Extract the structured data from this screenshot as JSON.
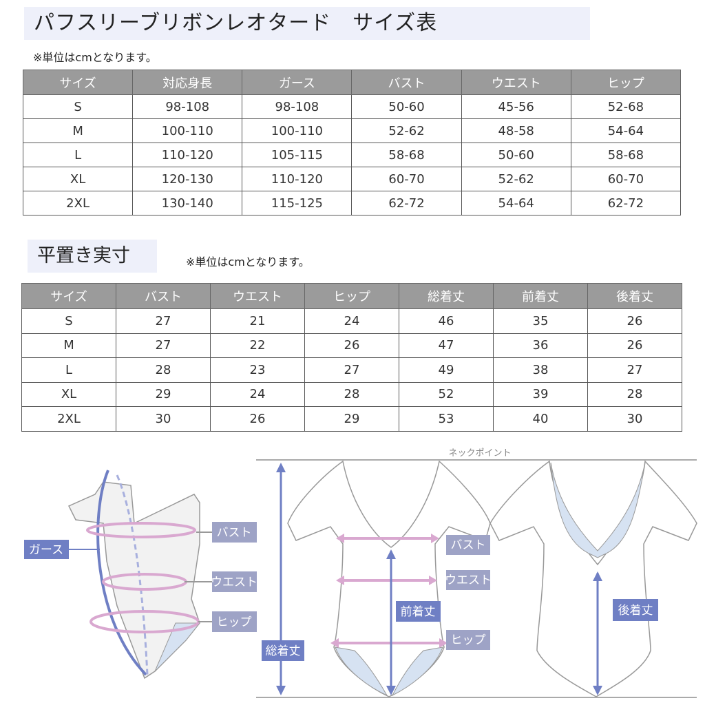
{
  "title": "パフスリーブリボンレオタード　サイズ表",
  "note": "※単位はcmとなります。",
  "table1": {
    "headers": [
      "サイズ",
      "対応身長",
      "ガース",
      "バスト",
      "ウエスト",
      "ヒップ"
    ],
    "rows": [
      [
        "S",
        "98-108",
        "98-108",
        "50-60",
        "45-56",
        "52-68"
      ],
      [
        "M",
        "100-110",
        "100-110",
        "52-62",
        "48-58",
        "54-64"
      ],
      [
        "L",
        "110-120",
        "105-115",
        "58-68",
        "50-60",
        "58-68"
      ],
      [
        "XL",
        "120-130",
        "110-120",
        "60-70",
        "52-62",
        "60-70"
      ],
      [
        "2XL",
        "130-140",
        "115-125",
        "62-72",
        "54-64",
        "62-72"
      ]
    ]
  },
  "section2": {
    "title": "平置き実寸",
    "note": "※単位はcmとなります。"
  },
  "table2": {
    "headers": [
      "サイズ",
      "バスト",
      "ウエスト",
      "ヒップ",
      "総着丈",
      "前着丈",
      "後着丈"
    ],
    "rows": [
      [
        "S",
        "27",
        "21",
        "24",
        "46",
        "35",
        "26"
      ],
      [
        "M",
        "27",
        "22",
        "26",
        "47",
        "36",
        "26"
      ],
      [
        "L",
        "28",
        "23",
        "27",
        "49",
        "38",
        "27"
      ],
      [
        "XL",
        "29",
        "24",
        "28",
        "52",
        "39",
        "28"
      ],
      [
        "2XL",
        "30",
        "26",
        "29",
        "53",
        "40",
        "30"
      ]
    ]
  },
  "diagram": {
    "neck_point": "ネックポイント",
    "girth": "ガース",
    "bust": "バスト",
    "waist": "ウエスト",
    "hip": "ヒップ",
    "total_length": "総着丈",
    "front_length": "前着丈",
    "back_length": "後着丈"
  },
  "colors": {
    "header_bg": "#9b9b9b",
    "title_bg": "#eef0fa",
    "accent_blue": "#6f7fc4",
    "label_gray_blue": "#9ea3c6",
    "pink": "#d9a8d0"
  }
}
